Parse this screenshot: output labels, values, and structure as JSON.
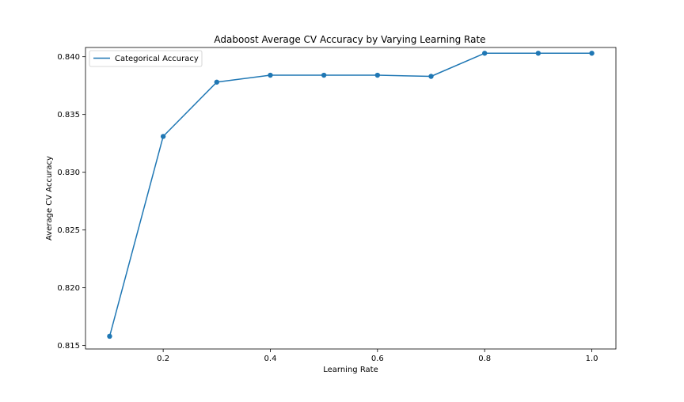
{
  "chart_data": {
    "type": "line",
    "title": "Adaboost Average CV Accuracy by Varying Learning Rate",
    "xlabel": "Learning Rate",
    "ylabel": "Average CV Accuracy",
    "xlim": [
      0.055,
      1.045
    ],
    "ylim": [
      0.8147,
      0.8408
    ],
    "x_ticks": [
      0.2,
      0.4,
      0.6,
      0.8,
      1.0
    ],
    "x_tick_labels": [
      "0.2",
      "0.4",
      "0.6",
      "0.8",
      "1.0"
    ],
    "y_ticks": [
      0.815,
      0.82,
      0.825,
      0.83,
      0.835,
      0.84
    ],
    "y_tick_labels": [
      "0.815",
      "0.820",
      "0.825",
      "0.830",
      "0.835",
      "0.840"
    ],
    "grid": false,
    "legend_position": "top-left",
    "series": [
      {
        "name": "Categorical Accuracy",
        "color": "#1f77b4",
        "marker": "circle",
        "x": [
          0.1,
          0.2,
          0.3,
          0.4,
          0.5,
          0.6,
          0.7,
          0.8,
          0.9,
          1.0
        ],
        "y": [
          0.8158,
          0.8331,
          0.8378,
          0.8384,
          0.8384,
          0.8384,
          0.8383,
          0.8403,
          0.8403,
          0.8403
        ]
      }
    ]
  }
}
